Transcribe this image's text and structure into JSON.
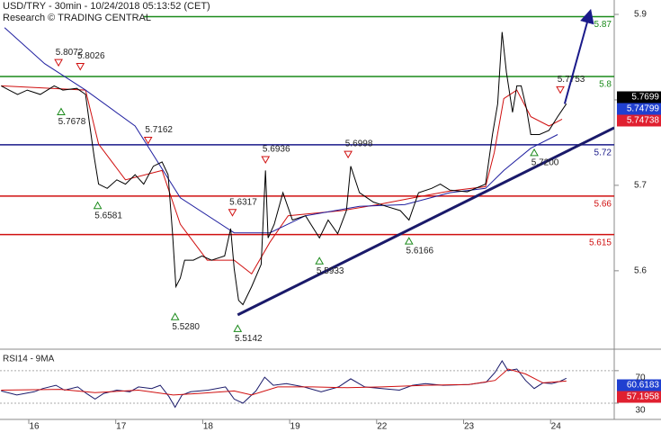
{
  "chart_data": [
    {
      "type": "line",
      "title": "USD/TRY - 30min - 10/24/2018 05:13:52 (CET)",
      "subtitle": "Research © TRADING CENTRAL",
      "xlim": [
        -0.393,
        6.67
      ],
      "xticks": [
        {
          "value": 0,
          "label": "16"
        },
        {
          "value": 1,
          "label": "17"
        },
        {
          "value": 2,
          "label": "18"
        },
        {
          "value": 3,
          "label": "19"
        },
        {
          "value": 4,
          "label": "22"
        },
        {
          "value": 5,
          "label": "23"
        },
        {
          "value": 6,
          "label": "24"
        }
      ],
      "ylim": [
        5.484,
        5.9
      ],
      "yticks": [
        5.6,
        5.7,
        5.8,
        5.9
      ],
      "series": [
        {
          "color": "#d01010",
          "x": [
            -0.38,
            0.59,
            0.74,
            1.05,
            1.47,
            1.68,
            1.99,
            2.3,
            2.5,
            2.71,
            2.92,
            3.54,
            3.95,
            4.36,
            4.78,
            5.19,
            5.29,
            5.4,
            5.55,
            5.71,
            5.92,
            6.07
          ],
          "values": [
            5.789,
            5.784,
            5.721,
            5.679,
            5.69,
            5.627,
            5.585,
            5.585,
            5.569,
            5.606,
            5.637,
            5.643,
            5.65,
            5.658,
            5.666,
            5.671,
            5.711,
            5.774,
            5.784,
            5.753,
            5.742,
            5.75
          ]
        },
        {
          "color": "#2020a0",
          "x": [
            -0.34,
            0.12,
            0.59,
            1.16,
            1.68,
            2.3,
            2.71,
            3.12,
            3.74,
            4.26,
            4.78,
            5.19,
            5.4,
            5.71,
            6.02
          ],
          "values": [
            5.857,
            5.815,
            5.784,
            5.742,
            5.658,
            5.617,
            5.617,
            5.637,
            5.648,
            5.65,
            5.664,
            5.669,
            5.69,
            5.716,
            5.732
          ]
        },
        {
          "color": "#000000",
          "x": [
            -0.38,
            -0.29,
            -0.19,
            -0.08,
            0.07,
            0.23,
            0.33,
            0.49,
            0.59,
            0.64,
            0.69,
            0.74,
            0.84,
            0.95,
            1.05,
            1.16,
            1.26,
            1.37,
            1.47,
            1.54,
            1.59,
            1.63,
            1.68,
            1.73,
            1.83,
            1.93,
            2.04,
            2.19,
            2.26,
            2.3,
            2.35,
            2.4,
            2.5,
            2.61,
            2.66,
            2.69,
            2.76,
            2.86,
            2.97,
            3.12,
            3.28,
            3.38,
            3.49,
            3.59,
            3.64,
            3.74,
            3.9,
            4.05,
            4.21,
            4.31,
            4.42,
            4.57,
            4.67,
            4.78,
            4.98,
            5.19,
            5.27,
            5.33,
            5.38,
            5.43,
            5.5,
            5.55,
            5.6,
            5.66,
            5.71,
            5.81,
            5.92,
            6.02,
            6.12
          ],
          "values": [
            5.789,
            5.784,
            5.779,
            5.784,
            5.779,
            5.789,
            5.784,
            5.786,
            5.779,
            5.742,
            5.706,
            5.674,
            5.669,
            5.679,
            5.674,
            5.685,
            5.674,
            5.695,
            5.7,
            5.685,
            5.617,
            5.554,
            5.564,
            5.585,
            5.585,
            5.59,
            5.585,
            5.59,
            5.622,
            5.575,
            5.538,
            5.533,
            5.554,
            5.58,
            5.69,
            5.611,
            5.627,
            5.664,
            5.632,
            5.637,
            5.611,
            5.632,
            5.616,
            5.643,
            5.695,
            5.664,
            5.653,
            5.648,
            5.643,
            5.632,
            5.664,
            5.669,
            5.674,
            5.667,
            5.665,
            5.674,
            5.732,
            5.768,
            5.852,
            5.805,
            5.758,
            5.789,
            5.789,
            5.763,
            5.732,
            5.732,
            5.737,
            5.753,
            5.768
          ]
        }
      ],
      "levels": [
        {
          "value": 5.87,
          "color": "#1a8a1a"
        },
        {
          "value": 5.8,
          "color": "#1a8a1a"
        },
        {
          "value": 5.72,
          "color": "#1a1a8a"
        },
        {
          "value": 5.66,
          "color": "#d01010"
        },
        {
          "value": 5.615,
          "color": "#d01010"
        }
      ],
      "annotations": [
        {
          "x": 0.28,
          "value": 5.8072,
          "label": "5.8072",
          "kind": "high"
        },
        {
          "x": 0.53,
          "value": 5.8026,
          "label": "5.8026",
          "kind": "high"
        },
        {
          "x": 0.31,
          "value": 5.7678,
          "label": "5.7678",
          "kind": "low"
        },
        {
          "x": 1.31,
          "value": 5.7162,
          "label": "5.7162",
          "kind": "high"
        },
        {
          "x": 0.73,
          "value": 5.6581,
          "label": "5.6581",
          "kind": "low"
        },
        {
          "x": 1.62,
          "value": 5.528,
          "label": "5.5280",
          "kind": "low"
        },
        {
          "x": 2.28,
          "value": 5.6317,
          "label": "5.6317",
          "kind": "high"
        },
        {
          "x": 2.34,
          "value": 5.5142,
          "label": "5.5142",
          "kind": "low"
        },
        {
          "x": 2.66,
          "value": 5.6936,
          "label": "5.6936",
          "kind": "high"
        },
        {
          "x": 3.28,
          "value": 5.5933,
          "label": "5.5933",
          "kind": "low"
        },
        {
          "x": 3.61,
          "value": 5.6998,
          "label": "5.6998",
          "kind": "high"
        },
        {
          "x": 4.31,
          "value": 5.6166,
          "label": "5.6166",
          "kind": "low"
        },
        {
          "x": 5.75,
          "value": 5.72,
          "label": "5.7200",
          "kind": "low"
        },
        {
          "x": 6.05,
          "value": 5.7753,
          "label": "5.7753",
          "kind": "high"
        }
      ],
      "trendline": {
        "x": [
          2.34,
          6.67
        ],
        "values": [
          5.521,
          5.74
        ]
      },
      "forecast_arrow": {
        "x": [
          6.1,
          6.38
        ],
        "values": [
          5.768,
          5.871
        ]
      },
      "price_tags": [
        {
          "value": 5.7699,
          "color": "#000000"
        },
        {
          "value": 5.74799,
          "color": "#2040d0"
        },
        {
          "value": 5.74738,
          "color": "#e02030"
        }
      ]
    },
    {
      "type": "line",
      "title": "RSI14 - 9MA",
      "ylim": [
        10,
        92
      ],
      "yticks": [
        30,
        70
      ],
      "series": [
        {
          "color": "#1a1a6a",
          "x": [
            -0.38,
            -0.2,
            0,
            0.1,
            0.25,
            0.35,
            0.5,
            0.6,
            0.7,
            0.8,
            0.95,
            1.1,
            1.2,
            1.35,
            1.45,
            1.55,
            1.62,
            1.7,
            1.8,
            2.0,
            2.2,
            2.3,
            2.4,
            2.55,
            2.65,
            2.75,
            2.9,
            3.1,
            3.3,
            3.5,
            3.64,
            3.8,
            4.0,
            4.2,
            4.35,
            4.5,
            4.7,
            5.0,
            5.2,
            5.3,
            5.38,
            5.45,
            5.55,
            5.65,
            5.75,
            5.85,
            5.95,
            6.05,
            6.12
          ],
          "values": [
            45,
            40,
            44,
            48,
            52,
            46,
            50,
            42,
            35,
            42,
            46,
            44,
            50,
            48,
            52,
            38,
            25,
            40,
            44,
            46,
            50,
            35,
            30,
            45,
            62,
            52,
            54,
            50,
            44,
            50,
            60,
            50,
            48,
            46,
            52,
            54,
            52,
            53,
            56,
            68,
            82,
            70,
            72,
            58,
            48,
            55,
            54,
            57,
            60.6183
          ]
        },
        {
          "color": "#d01010",
          "x": [
            -0.38,
            0.3,
            0.7,
            1.2,
            1.6,
            1.9,
            2.3,
            2.5,
            2.8,
            3.2,
            3.6,
            4.0,
            4.5,
            5.0,
            5.3,
            5.45,
            5.65,
            5.85,
            6.12
          ],
          "values": [
            46,
            47,
            43,
            46,
            40,
            42,
            45,
            40,
            50,
            50,
            49,
            50,
            52,
            53,
            58,
            72,
            66,
            55,
            57.1958
          ]
        }
      ],
      "price_tags": [
        {
          "value": 60.6183,
          "color": "#2040d0"
        },
        {
          "value": 57.1958,
          "color": "#e02030"
        }
      ]
    }
  ]
}
